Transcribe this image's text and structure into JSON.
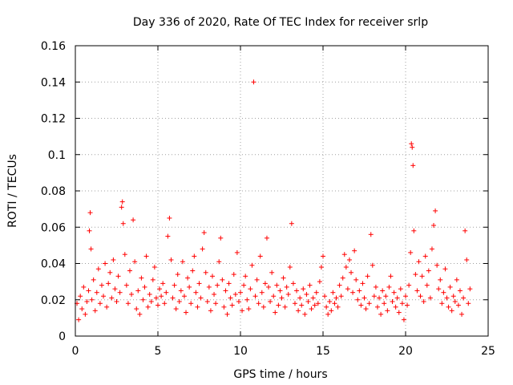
{
  "chart_data": {
    "type": "scatter",
    "title": "Day 336 of 2020, Rate Of TEC Index for receiver srlp",
    "xlabel": "GPS time / hours",
    "ylabel": "ROTI / TECUs",
    "xlim": [
      0,
      25
    ],
    "ylim": [
      0,
      0.16
    ],
    "x_ticks": [
      "0",
      "5",
      "10",
      "15",
      "20",
      "25"
    ],
    "y_ticks": [
      "0",
      "0.02",
      "0.04",
      "0.06",
      "0.08",
      "0.1",
      "0.12",
      "0.14",
      "0.16"
    ],
    "x_tick_values": [
      0,
      5,
      10,
      15,
      20,
      25
    ],
    "y_tick_values": [
      0,
      0.02,
      0.04,
      0.06,
      0.08,
      0.1,
      0.12,
      0.14,
      0.16
    ],
    "grid": true,
    "marker": "+",
    "color": "#ff0000",
    "series": [
      {
        "name": "ROTI",
        "points": [
          [
            0.1,
            0.018
          ],
          [
            0.2,
            0.009
          ],
          [
            0.3,
            0.022
          ],
          [
            0.4,
            0.015
          ],
          [
            0.5,
            0.027
          ],
          [
            0.6,
            0.012
          ],
          [
            0.7,
            0.019
          ],
          [
            0.8,
            0.025
          ],
          [
            0.85,
            0.058
          ],
          [
            0.9,
            0.068
          ],
          [
            0.95,
            0.048
          ],
          [
            1.0,
            0.02
          ],
          [
            1.1,
            0.031
          ],
          [
            1.2,
            0.014
          ],
          [
            1.3,
            0.024
          ],
          [
            1.4,
            0.037
          ],
          [
            1.5,
            0.018
          ],
          [
            1.6,
            0.028
          ],
          [
            1.7,
            0.022
          ],
          [
            1.8,
            0.04
          ],
          [
            1.9,
            0.016
          ],
          [
            2.0,
            0.029
          ],
          [
            2.1,
            0.035
          ],
          [
            2.2,
            0.021
          ],
          [
            2.3,
            0.042
          ],
          [
            2.4,
            0.026
          ],
          [
            2.5,
            0.019
          ],
          [
            2.6,
            0.033
          ],
          [
            2.7,
            0.024
          ],
          [
            2.8,
            0.071
          ],
          [
            2.85,
            0.074
          ],
          [
            2.9,
            0.062
          ],
          [
            3.0,
            0.045
          ],
          [
            3.1,
            0.028
          ],
          [
            3.2,
            0.018
          ],
          [
            3.3,
            0.036
          ],
          [
            3.4,
            0.023
          ],
          [
            3.5,
            0.064
          ],
          [
            3.6,
            0.041
          ],
          [
            3.7,
            0.015
          ],
          [
            3.8,
            0.025
          ],
          [
            3.9,
            0.012
          ],
          [
            4.0,
            0.032
          ],
          [
            4.1,
            0.02
          ],
          [
            4.2,
            0.027
          ],
          [
            4.3,
            0.044
          ],
          [
            4.4,
            0.016
          ],
          [
            4.5,
            0.023
          ],
          [
            4.6,
            0.019
          ],
          [
            4.7,
            0.031
          ],
          [
            4.8,
            0.038
          ],
          [
            4.9,
            0.021
          ],
          [
            5.0,
            0.017
          ],
          [
            5.1,
            0.026
          ],
          [
            5.2,
            0.022
          ],
          [
            5.3,
            0.029
          ],
          [
            5.4,
            0.018
          ],
          [
            5.5,
            0.024
          ],
          [
            5.6,
            0.055
          ],
          [
            5.7,
            0.065
          ],
          [
            5.8,
            0.042
          ],
          [
            5.9,
            0.021
          ],
          [
            6.0,
            0.028
          ],
          [
            6.1,
            0.015
          ],
          [
            6.2,
            0.034
          ],
          [
            6.3,
            0.019
          ],
          [
            6.4,
            0.025
          ],
          [
            6.5,
            0.041
          ],
          [
            6.6,
            0.022
          ],
          [
            6.7,
            0.013
          ],
          [
            6.8,
            0.032
          ],
          [
            6.9,
            0.027
          ],
          [
            7.0,
            0.018
          ],
          [
            7.1,
            0.036
          ],
          [
            7.2,
            0.044
          ],
          [
            7.3,
            0.024
          ],
          [
            7.4,
            0.016
          ],
          [
            7.5,
            0.029
          ],
          [
            7.6,
            0.021
          ],
          [
            7.7,
            0.048
          ],
          [
            7.8,
            0.057
          ],
          [
            7.9,
            0.035
          ],
          [
            8.0,
            0.019
          ],
          [
            8.1,
            0.027
          ],
          [
            8.2,
            0.014
          ],
          [
            8.3,
            0.033
          ],
          [
            8.4,
            0.023
          ],
          [
            8.5,
            0.018
          ],
          [
            8.6,
            0.028
          ],
          [
            8.7,
            0.041
          ],
          [
            8.8,
            0.054
          ],
          [
            8.9,
            0.031
          ],
          [
            9.0,
            0.016
          ],
          [
            9.1,
            0.025
          ],
          [
            9.2,
            0.012
          ],
          [
            9.3,
            0.029
          ],
          [
            9.4,
            0.021
          ],
          [
            9.5,
            0.017
          ],
          [
            9.6,
            0.034
          ],
          [
            9.7,
            0.023
          ],
          [
            9.8,
            0.046
          ],
          [
            9.9,
            0.019
          ],
          [
            10.0,
            0.024
          ],
          [
            10.1,
            0.014
          ],
          [
            10.2,
            0.028
          ],
          [
            10.3,
            0.033
          ],
          [
            10.4,
            0.02
          ],
          [
            10.5,
            0.015
          ],
          [
            10.6,
            0.026
          ],
          [
            10.7,
            0.039
          ],
          [
            10.8,
            0.14
          ],
          [
            10.9,
            0.022
          ],
          [
            11.0,
            0.031
          ],
          [
            11.1,
            0.018
          ],
          [
            11.2,
            0.044
          ],
          [
            11.3,
            0.024
          ],
          [
            11.4,
            0.016
          ],
          [
            11.5,
            0.029
          ],
          [
            11.6,
            0.054
          ],
          [
            11.7,
            0.027
          ],
          [
            11.8,
            0.019
          ],
          [
            11.9,
            0.035
          ],
          [
            12.0,
            0.022
          ],
          [
            12.1,
            0.013
          ],
          [
            12.2,
            0.028
          ],
          [
            12.3,
            0.017
          ],
          [
            12.4,
            0.025
          ],
          [
            12.5,
            0.021
          ],
          [
            12.6,
            0.032
          ],
          [
            12.7,
            0.016
          ],
          [
            12.8,
            0.027
          ],
          [
            12.9,
            0.023
          ],
          [
            13.0,
            0.038
          ],
          [
            13.1,
            0.062
          ],
          [
            13.2,
            0.029
          ],
          [
            13.3,
            0.018
          ],
          [
            13.4,
            0.025
          ],
          [
            13.5,
            0.014
          ],
          [
            13.6,
            0.021
          ],
          [
            13.7,
            0.017
          ],
          [
            13.8,
            0.026
          ],
          [
            13.9,
            0.012
          ],
          [
            14.0,
            0.023
          ],
          [
            14.1,
            0.019
          ],
          [
            14.2,
            0.028
          ],
          [
            14.3,
            0.015
          ],
          [
            14.4,
            0.021
          ],
          [
            14.5,
            0.017
          ],
          [
            14.6,
            0.024
          ],
          [
            14.7,
            0.018
          ],
          [
            14.8,
            0.03
          ],
          [
            14.9,
            0.038
          ],
          [
            15.0,
            0.044
          ],
          [
            15.1,
            0.022
          ],
          [
            15.2,
            0.016
          ],
          [
            15.3,
            0.012
          ],
          [
            15.4,
            0.019
          ],
          [
            15.5,
            0.014
          ],
          [
            15.6,
            0.024
          ],
          [
            15.7,
            0.018
          ],
          [
            15.8,
            0.021
          ],
          [
            15.9,
            0.016
          ],
          [
            16.0,
            0.028
          ],
          [
            16.1,
            0.022
          ],
          [
            16.2,
            0.032
          ],
          [
            16.3,
            0.045
          ],
          [
            16.4,
            0.038
          ],
          [
            16.5,
            0.026
          ],
          [
            16.6,
            0.042
          ],
          [
            16.7,
            0.035
          ],
          [
            16.8,
            0.024
          ],
          [
            16.9,
            0.047
          ],
          [
            17.0,
            0.031
          ],
          [
            17.1,
            0.02
          ],
          [
            17.2,
            0.025
          ],
          [
            17.3,
            0.017
          ],
          [
            17.4,
            0.029
          ],
          [
            17.5,
            0.021
          ],
          [
            17.6,
            0.015
          ],
          [
            17.7,
            0.033
          ],
          [
            17.8,
            0.018
          ],
          [
            17.9,
            0.056
          ],
          [
            18.0,
            0.039
          ],
          [
            18.1,
            0.022
          ],
          [
            18.2,
            0.027
          ],
          [
            18.3,
            0.016
          ],
          [
            18.4,
            0.021
          ],
          [
            18.5,
            0.012
          ],
          [
            18.6,
            0.025
          ],
          [
            18.7,
            0.018
          ],
          [
            18.8,
            0.022
          ],
          [
            18.9,
            0.014
          ],
          [
            19.0,
            0.027
          ],
          [
            19.1,
            0.033
          ],
          [
            19.2,
            0.019
          ],
          [
            19.3,
            0.024
          ],
          [
            19.4,
            0.016
          ],
          [
            19.5,
            0.021
          ],
          [
            19.6,
            0.013
          ],
          [
            19.7,
            0.026
          ],
          [
            19.8,
            0.018
          ],
          [
            19.9,
            0.009
          ],
          [
            20.0,
            0.022
          ],
          [
            20.1,
            0.017
          ],
          [
            20.2,
            0.028
          ],
          [
            20.3,
            0.046
          ],
          [
            20.35,
            0.106
          ],
          [
            20.4,
            0.104
          ],
          [
            20.45,
            0.094
          ],
          [
            20.5,
            0.058
          ],
          [
            20.6,
            0.034
          ],
          [
            20.7,
            0.025
          ],
          [
            20.8,
            0.041
          ],
          [
            20.9,
            0.022
          ],
          [
            21.0,
            0.033
          ],
          [
            21.1,
            0.019
          ],
          [
            21.2,
            0.044
          ],
          [
            21.3,
            0.028
          ],
          [
            21.4,
            0.036
          ],
          [
            21.5,
            0.021
          ],
          [
            21.6,
            0.048
          ],
          [
            21.7,
            0.061
          ],
          [
            21.8,
            0.069
          ],
          [
            21.9,
            0.039
          ],
          [
            22.0,
            0.026
          ],
          [
            22.1,
            0.031
          ],
          [
            22.2,
            0.018
          ],
          [
            22.3,
            0.024
          ],
          [
            22.4,
            0.037
          ],
          [
            22.5,
            0.021
          ],
          [
            22.6,
            0.016
          ],
          [
            22.7,
            0.027
          ],
          [
            22.8,
            0.014
          ],
          [
            22.9,
            0.022
          ],
          [
            23.0,
            0.019
          ],
          [
            23.1,
            0.031
          ],
          [
            23.2,
            0.017
          ],
          [
            23.3,
            0.025
          ],
          [
            23.4,
            0.012
          ],
          [
            23.5,
            0.021
          ],
          [
            23.6,
            0.058
          ],
          [
            23.7,
            0.042
          ],
          [
            23.8,
            0.018
          ],
          [
            23.9,
            0.026
          ]
        ]
      }
    ]
  }
}
